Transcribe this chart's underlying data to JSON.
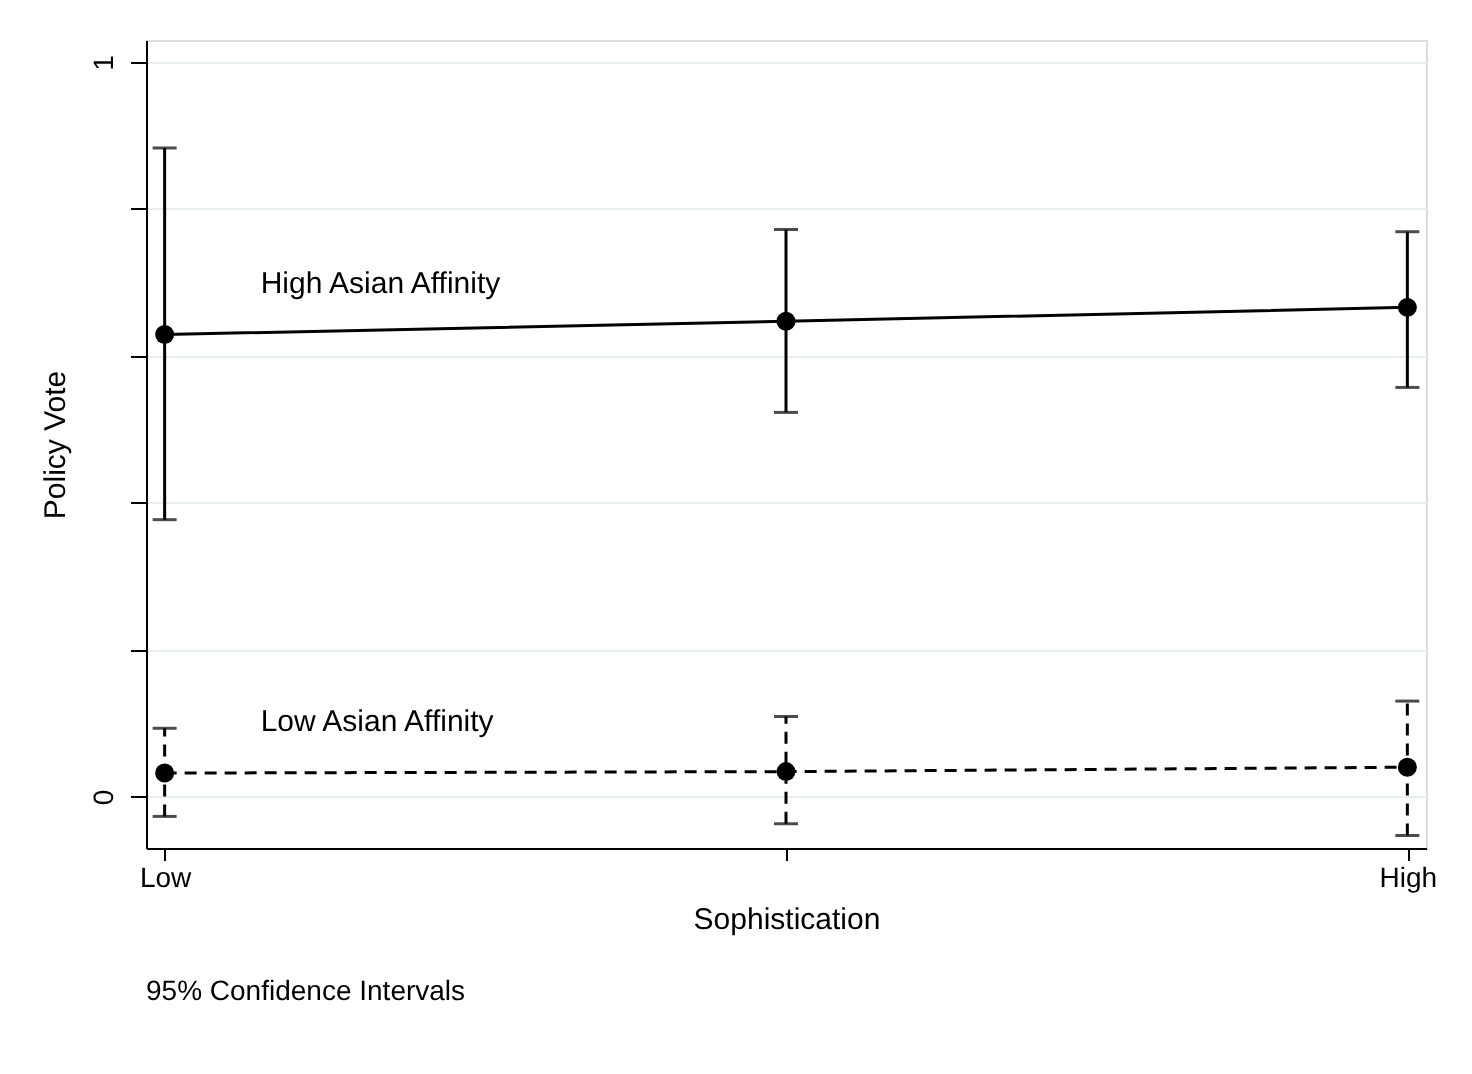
{
  "chart_data": {
    "type": "line",
    "xlabel": "Sophistication",
    "ylabel": "Policy Vote",
    "categories": [
      "Low",
      null,
      "High"
    ],
    "series": [
      {
        "name": "High Asian Affinity",
        "color": "#000000",
        "line_style": "solid",
        "values": [
          0.629,
          0.647,
          0.666
        ],
        "errors": [
          [
            0.377,
            0.883
          ],
          [
            0.523,
            0.772
          ],
          [
            0.557,
            0.769
          ]
        ]
      },
      {
        "name": "Low Asian Affinity",
        "color": "#000000",
        "line_style": "dashed",
        "values": [
          0.032,
          0.034,
          0.04
        ],
        "errors": [
          [
            -0.027,
            0.093
          ],
          [
            -0.037,
            0.109
          ],
          [
            -0.053,
            0.13
          ]
        ]
      }
    ],
    "ylim": [
      -0.07,
      1.03
    ],
    "yticks": [
      0,
      {
        "value": 0.2,
        "label": null
      },
      {
        "value": 0.4,
        "label": null
      },
      {
        "value": 0.6,
        "label": null
      },
      {
        "value": 0.8,
        "label": null
      },
      1
    ],
    "grid": "y",
    "marker": "circle",
    "legend": false,
    "annotations": [
      "95% Confidence Intervals"
    ]
  }
}
